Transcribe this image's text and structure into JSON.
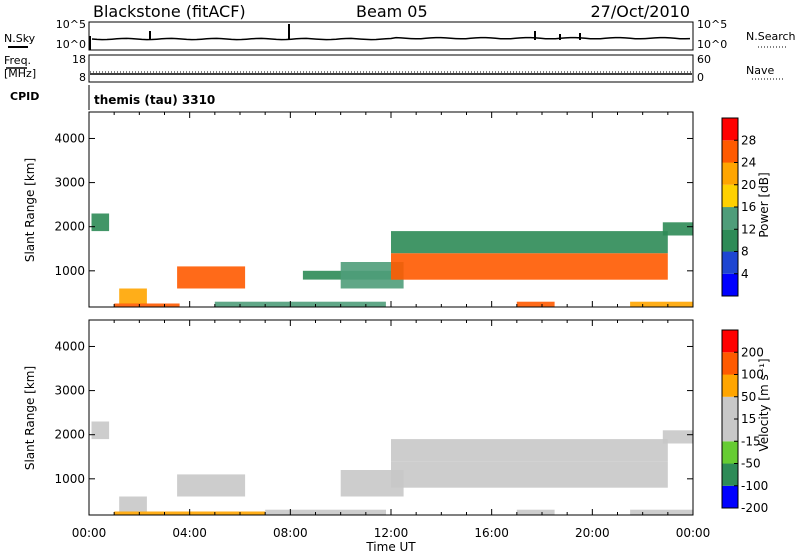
{
  "header": {
    "station": "Blackstone (fitACF)",
    "beam": "Beam 05",
    "date": "27/Oct/2010"
  },
  "noise_panel": {
    "left_label": "N.Sky",
    "left_ticks": [
      "10^5",
      "10^0"
    ],
    "right_ticks": [
      "10^5",
      "10^0"
    ],
    "right_label": "N.Search"
  },
  "freq_panel": {
    "left_label_1": "Freq.",
    "left_label_2": "[MHz]",
    "left_ticks": [
      "18",
      "8"
    ],
    "right_ticks": [
      "60",
      "0"
    ],
    "right_label": "Nave"
  },
  "cpid": {
    "label": "CPID",
    "text": "themis (tau) 3310"
  },
  "colors": {
    "power": [
      "#0000ff",
      "#1e46d2",
      "#2e8b57",
      "#4f9d7a",
      "#ffd100",
      "#ffa500",
      "#ff5a00",
      "#ff0000"
    ],
    "velocity": [
      "#ff0000",
      "#ff5a00",
      "#ffa500",
      "#c8c8c8",
      "#c8c8c8",
      "#66cc33",
      "#2e8b57",
      "#0000ff"
    ],
    "ground_scatter": "#c8c8c8"
  },
  "chart_data": [
    {
      "type": "heatmap",
      "title": "Power",
      "ylabel": "Slant Range [km]",
      "xlabel": "",
      "xlim": [
        0,
        24
      ],
      "ylim": [
        180,
        4600
      ],
      "y_ticks": [
        "1000",
        "2000",
        "3000",
        "4000"
      ],
      "colorbar_label": "Power [dB]",
      "colorbar_ticks": [
        "4",
        "8",
        "12",
        "16",
        "20",
        "24",
        "28"
      ],
      "regions": [
        {
          "t0": 0.1,
          "t1": 0.8,
          "r0": 1900,
          "r1": 2300,
          "level": 2
        },
        {
          "t0": 1.2,
          "t1": 2.3,
          "r0": 250,
          "r1": 600,
          "level": 5
        },
        {
          "t0": 1.0,
          "t1": 3.6,
          "r0": 190,
          "r1": 260,
          "level": 6
        },
        {
          "t0": 3.5,
          "t1": 6.2,
          "r0": 600,
          "r1": 1100,
          "level": 6
        },
        {
          "t0": 5.0,
          "t1": 11.8,
          "r0": 190,
          "r1": 300,
          "level": 3
        },
        {
          "t0": 8.5,
          "t1": 12.0,
          "r0": 800,
          "r1": 1000,
          "level": 2
        },
        {
          "t0": 10.0,
          "t1": 12.5,
          "r0": 600,
          "r1": 1200,
          "level": 3
        },
        {
          "t0": 12.0,
          "t1": 23.0,
          "r0": 800,
          "r1": 1400,
          "level": 6
        },
        {
          "t0": 12.0,
          "t1": 23.0,
          "r0": 1400,
          "r1": 1900,
          "level": 2
        },
        {
          "t0": 17.0,
          "t1": 18.5,
          "r0": 190,
          "r1": 300,
          "level": 6
        },
        {
          "t0": 21.5,
          "t1": 24.0,
          "r0": 190,
          "r1": 300,
          "level": 5
        },
        {
          "t0": 22.8,
          "t1": 24.0,
          "r0": 1800,
          "r1": 2100,
          "level": 2
        }
      ]
    },
    {
      "type": "heatmap",
      "title": "Velocity",
      "ylabel": "Slant Range [km]",
      "xlabel": "Time UT",
      "xlim": [
        0,
        24
      ],
      "ylim": [
        180,
        4600
      ],
      "x_ticks": [
        "00:00",
        "04:00",
        "08:00",
        "12:00",
        "16:00",
        "20:00",
        "00:00"
      ],
      "y_ticks": [
        "1000",
        "2000",
        "3000",
        "4000"
      ],
      "colorbar_label": "Velocity [m s⁻¹]",
      "colorbar_ticks": [
        "200",
        "100",
        "50",
        "15",
        "-15",
        "-50",
        "-100",
        "-200"
      ],
      "regions": [
        {
          "t0": 0.1,
          "t1": 0.8,
          "r0": 1900,
          "r1": 2300,
          "level": 3
        },
        {
          "t0": 1.2,
          "t1": 2.3,
          "r0": 250,
          "r1": 600,
          "level": 3
        },
        {
          "t0": 1.0,
          "t1": 7.0,
          "r0": 190,
          "r1": 260,
          "level": 2
        },
        {
          "t0": 3.5,
          "t1": 6.2,
          "r0": 600,
          "r1": 1100,
          "level": 3
        },
        {
          "t0": 7.0,
          "t1": 11.8,
          "r0": 190,
          "r1": 300,
          "level": 3
        },
        {
          "t0": 10.0,
          "t1": 12.5,
          "r0": 600,
          "r1": 1200,
          "level": 3
        },
        {
          "t0": 12.0,
          "t1": 23.0,
          "r0": 800,
          "r1": 1400,
          "level": 3
        },
        {
          "t0": 12.0,
          "t1": 23.0,
          "r0": 1400,
          "r1": 1900,
          "level": 4
        },
        {
          "t0": 17.0,
          "t1": 18.5,
          "r0": 190,
          "r1": 300,
          "level": 3
        },
        {
          "t0": 21.5,
          "t1": 24.0,
          "r0": 190,
          "r1": 300,
          "level": 3
        },
        {
          "t0": 22.8,
          "t1": 24.0,
          "r0": 1800,
          "r1": 2100,
          "level": 3
        }
      ]
    }
  ]
}
